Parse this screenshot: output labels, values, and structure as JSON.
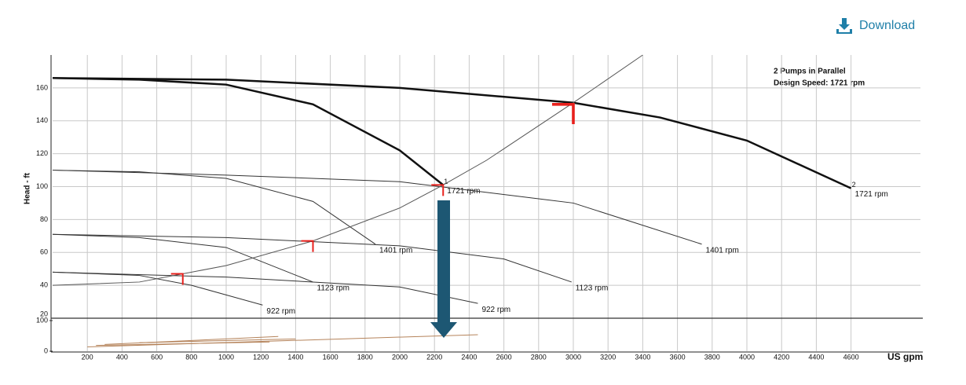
{
  "download": "Download",
  "chart_data": [
    {
      "type": "line",
      "y_label": "Head - ft",
      "x_label": "US gpm",
      "annotations": [
        "2 Pumps in Parallel",
        "Design Speed: 1721 rpm"
      ],
      "xlim": [
        0,
        5000
      ],
      "xticks": [
        200,
        400,
        600,
        800,
        1000,
        1200,
        1400,
        1600,
        1800,
        2000,
        2200,
        2400,
        2600,
        2800,
        3000,
        3200,
        3400,
        3600,
        3800,
        4000,
        4200,
        4400,
        4600
      ],
      "ylim": [
        20,
        180
      ],
      "yticks": [
        20,
        40,
        60,
        80,
        100,
        120,
        140,
        160
      ],
      "grid": true,
      "series": [
        {
          "name": "1721 rpm",
          "tag": "2",
          "color": "#111111",
          "line_width": 2.5,
          "x": [
            0,
            1000,
            2000,
            3000,
            3500,
            4000,
            4600
          ],
          "values": [
            166,
            165,
            160,
            151,
            142,
            128,
            99
          ]
        },
        {
          "name": "1721 rpm",
          "tag": "1",
          "color": "#111111",
          "line_width": 2.5,
          "x": [
            0,
            500,
            1000,
            1500,
            2000,
            2250
          ],
          "values": [
            166,
            165,
            162,
            150,
            122,
            101
          ]
        },
        {
          "name": "1401 rpm",
          "color": "#333333",
          "line_width": 1,
          "x": [
            0,
            1000,
            2000,
            3000,
            3740
          ],
          "values": [
            110,
            107,
            103,
            90,
            65
          ]
        },
        {
          "name": "1401 rpm",
          "color": "#333333",
          "line_width": 1,
          "x": [
            0,
            500,
            1000,
            1500,
            1860
          ],
          "values": [
            110,
            109,
            105,
            91,
            65
          ]
        },
        {
          "name": "1123 rpm",
          "color": "#333333",
          "line_width": 1,
          "x": [
            0,
            1000,
            2000,
            2600,
            2990
          ],
          "values": [
            71,
            69,
            64,
            56,
            42
          ]
        },
        {
          "name": "1123 rpm",
          "color": "#333333",
          "line_width": 1,
          "x": [
            0,
            500,
            1000,
            1500
          ],
          "values": [
            71,
            69,
            63,
            42
          ]
        },
        {
          "name": "922 rpm",
          "color": "#333333",
          "line_width": 1,
          "x": [
            0,
            1000,
            2000,
            2450
          ],
          "values": [
            48,
            45,
            39,
            29
          ]
        },
        {
          "name": "922 rpm",
          "color": "#333333",
          "line_width": 1,
          "x": [
            0,
            500,
            800,
            1210
          ],
          "values": [
            48,
            46,
            40,
            28
          ]
        },
        {
          "color": "#555555",
          "line_width": 1,
          "x": [
            0,
            500,
            750,
            1000,
            1500,
            2000,
            2250,
            2500,
            3000,
            3400
          ],
          "values": [
            40,
            42,
            47,
            52,
            67,
            87,
            101,
            116,
            151,
            180
          ]
        }
      ],
      "operating_points": {
        "color": "#e8201c",
        "x": [
          750,
          1500,
          2250,
          3000
        ],
        "values": [
          47,
          67,
          101,
          150
        ]
      }
    },
    {
      "type": "line",
      "xlim": [
        0,
        5000
      ],
      "ylim": [
        0,
        100
      ],
      "yticks": [
        0,
        100
      ],
      "series": [
        {
          "color": "#b5835a",
          "line_width": 1,
          "x": [
            200,
            2450
          ],
          "values": [
            14,
            54
          ]
        },
        {
          "color": "#b5835a",
          "line_width": 1,
          "x": [
            300,
            1300
          ],
          "values": [
            22,
            48
          ]
        },
        {
          "color": "#b5835a",
          "line_width": 1,
          "x": [
            500,
            1400
          ],
          "values": [
            28,
            40
          ]
        },
        {
          "color": "#b5835a",
          "line_width": 1,
          "x": [
            250,
            1250
          ],
          "values": [
            19,
            30
          ]
        }
      ]
    }
  ]
}
